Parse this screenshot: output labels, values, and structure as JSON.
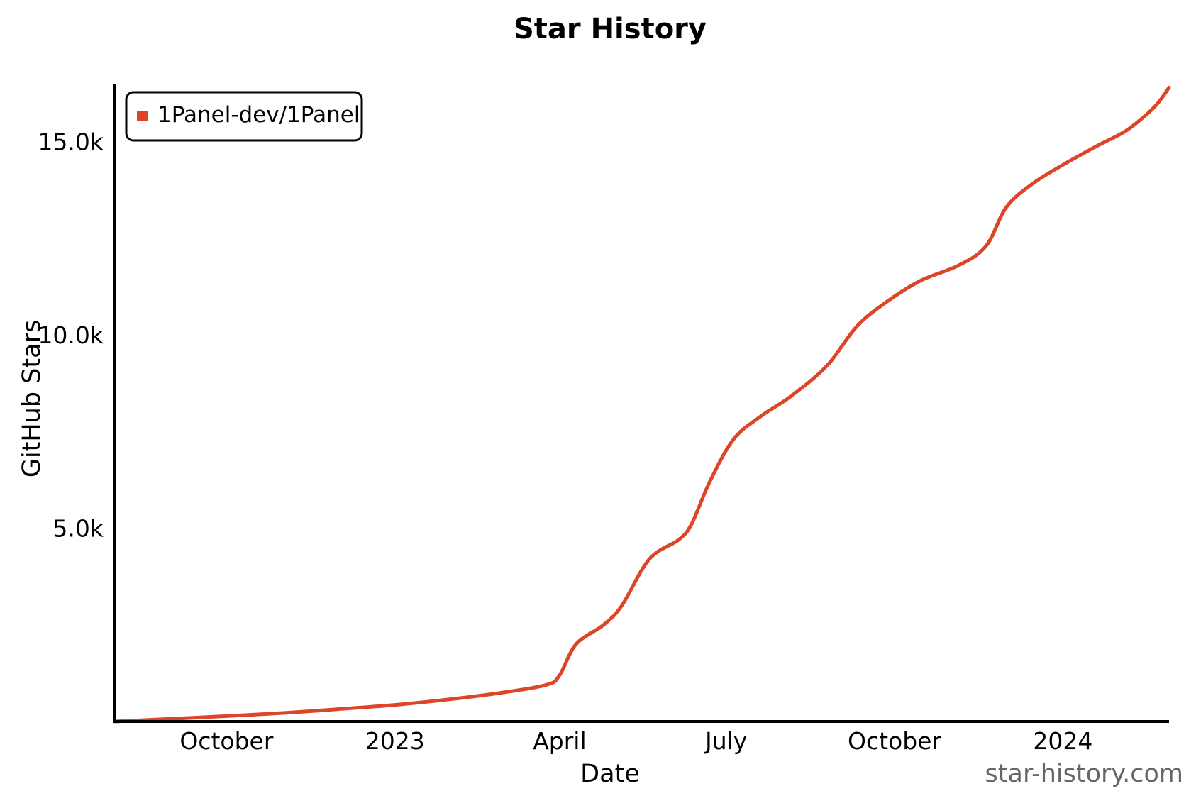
{
  "chart_data": {
    "type": "line",
    "title": "Star History",
    "xlabel": "Date",
    "ylabel": "GitHub Stars",
    "x_ticks": [
      {
        "label": "October",
        "date": "2022-10-01"
      },
      {
        "label": "2023",
        "date": "2023-01-01"
      },
      {
        "label": "April",
        "date": "2023-04-01"
      },
      {
        "label": "July",
        "date": "2023-07-01"
      },
      {
        "label": "October",
        "date": "2023-10-01"
      },
      {
        "label": "2024",
        "date": "2024-01-01"
      }
    ],
    "y_ticks": [
      {
        "label": "5.0k",
        "value": 5000
      },
      {
        "label": "10.0k",
        "value": 10000
      },
      {
        "label": "15.0k",
        "value": 15000
      }
    ],
    "xlim": [
      "2022-08-01",
      "2024-02-28"
    ],
    "ylim": [
      0,
      16500
    ],
    "legend_position": "top-left",
    "grid": false,
    "series": [
      {
        "name": "1Panel-dev/1Panel",
        "color": "#dd4528",
        "points": [
          {
            "x": "2022-08-01",
            "y": 0
          },
          {
            "x": "2022-09-01",
            "y": 70
          },
          {
            "x": "2022-10-01",
            "y": 140
          },
          {
            "x": "2022-11-01",
            "y": 220
          },
          {
            "x": "2022-12-01",
            "y": 320
          },
          {
            "x": "2023-01-01",
            "y": 430
          },
          {
            "x": "2023-02-01",
            "y": 580
          },
          {
            "x": "2023-03-01",
            "y": 750
          },
          {
            "x": "2023-03-25",
            "y": 950
          },
          {
            "x": "2023-04-01",
            "y": 1200
          },
          {
            "x": "2023-04-10",
            "y": 2000
          },
          {
            "x": "2023-04-25",
            "y": 2500
          },
          {
            "x": "2023-05-05",
            "y": 3000
          },
          {
            "x": "2023-05-20",
            "y": 4200
          },
          {
            "x": "2023-06-05",
            "y": 4700
          },
          {
            "x": "2023-06-12",
            "y": 5100
          },
          {
            "x": "2023-06-22",
            "y": 6200
          },
          {
            "x": "2023-07-05",
            "y": 7300
          },
          {
            "x": "2023-07-20",
            "y": 7900
          },
          {
            "x": "2023-08-05",
            "y": 8400
          },
          {
            "x": "2023-08-25",
            "y": 9200
          },
          {
            "x": "2023-09-10",
            "y": 10200
          },
          {
            "x": "2023-09-25",
            "y": 10800
          },
          {
            "x": "2023-10-15",
            "y": 11400
          },
          {
            "x": "2023-11-05",
            "y": 11800
          },
          {
            "x": "2023-11-20",
            "y": 12300
          },
          {
            "x": "2023-12-01",
            "y": 13300
          },
          {
            "x": "2023-12-15",
            "y": 13900
          },
          {
            "x": "2024-01-01",
            "y": 14400
          },
          {
            "x": "2024-01-20",
            "y": 14900
          },
          {
            "x": "2024-02-05",
            "y": 15300
          },
          {
            "x": "2024-02-20",
            "y": 15900
          },
          {
            "x": "2024-02-28",
            "y": 16400
          }
        ]
      }
    ],
    "watermark": "star-history.com"
  }
}
